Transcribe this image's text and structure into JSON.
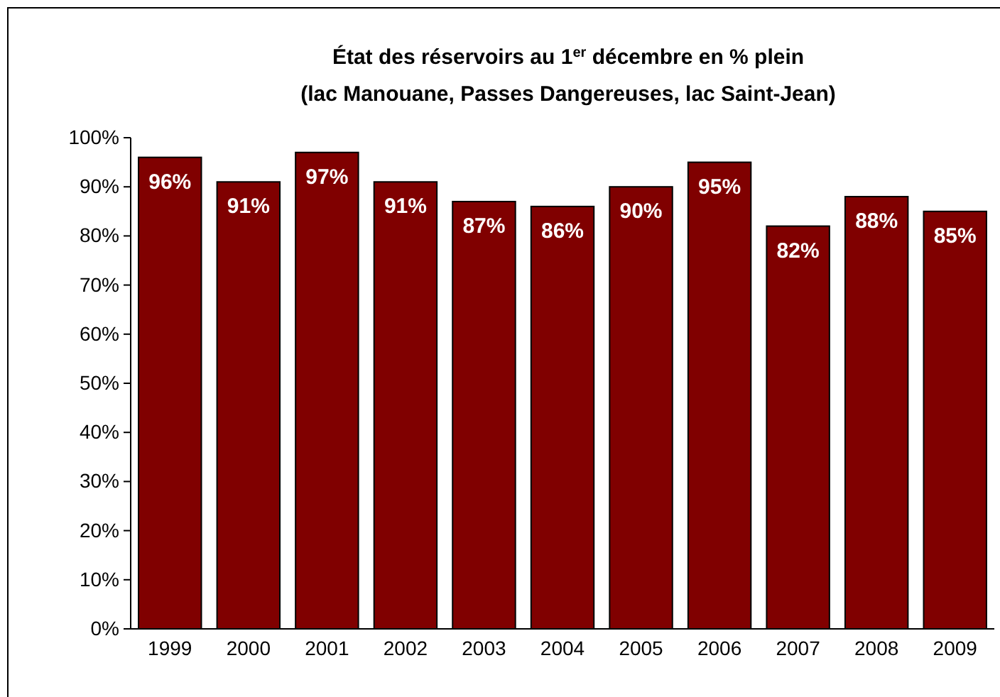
{
  "chart_data": {
    "type": "bar",
    "title": "État des réservoirs au 1$^{er}$ décembre en % plein",
    "subtitle": "(lac Manouane, Passes Dangereuses, lac Saint-Jean)",
    "categories": [
      "1999",
      "2000",
      "2001",
      "2002",
      "2003",
      "2004",
      "2005",
      "2006",
      "2007",
      "2008",
      "2009"
    ],
    "values": [
      96,
      91,
      97,
      91,
      87,
      86,
      90,
      95,
      82,
      88,
      85
    ],
    "value_labels": [
      "96%",
      "91%",
      "97%",
      "91%",
      "87%",
      "86%",
      "90%",
      "95%",
      "82%",
      "88%",
      "85%"
    ],
    "color": "#800000",
    "grid": false,
    "ylim": [
      0,
      100
    ],
    "yticks": [
      {
        "value": 0,
        "label": "0%"
      },
      {
        "value": 10,
        "label": "10%"
      },
      {
        "value": 20,
        "label": "20%"
      },
      {
        "value": 30,
        "label": "30%"
      },
      {
        "value": 40,
        "label": "40%"
      },
      {
        "value": 50,
        "label": "50%"
      },
      {
        "value": 60,
        "label": "60%"
      },
      {
        "value": 70,
        "label": "70%"
      },
      {
        "value": 80,
        "label": "80%"
      },
      {
        "value": 90,
        "label": "90%"
      },
      {
        "value": 100,
        "label": "100%"
      }
    ]
  }
}
